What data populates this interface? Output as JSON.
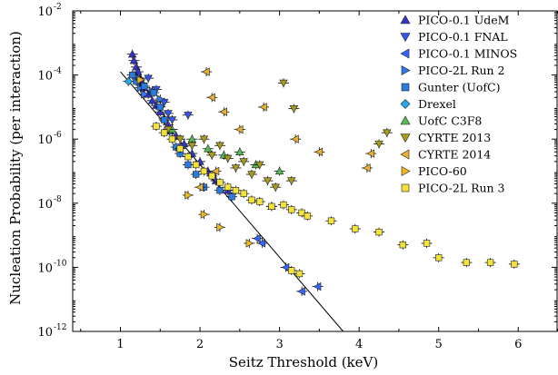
{
  "chart_data": {
    "type": "scatter",
    "title": "",
    "xlabel": "Seitz Threshold (keV)",
    "ylabel": "Nucleation Probability (per interaction)",
    "xlim": [
      0.4,
      6.5
    ],
    "ylim_log10": [
      -12,
      -2
    ],
    "y_scale": "log",
    "x_ticks": [
      "1",
      "2",
      "3",
      "4",
      "5",
      "6"
    ],
    "y_ticks": [
      "10",
      "10",
      "10",
      "10",
      "10",
      "10"
    ],
    "y_tick_exponents": [
      "-12",
      "-10",
      "-8",
      "-6",
      "-4",
      "-2"
    ],
    "legend_position": "top-right",
    "fit_line": {
      "color": "#000000",
      "points": [
        [
          1.0,
          -3.9
        ],
        [
          3.8,
          -12.0
        ]
      ]
    },
    "series": [
      {
        "name": "PICO-0.1 UdeM",
        "marker": "triangle-up",
        "color": "#3333cc",
        "points": [
          [
            1.15,
            -3.35
          ],
          [
            1.17,
            -3.55
          ],
          [
            1.2,
            -3.75
          ],
          [
            1.22,
            -3.9
          ],
          [
            1.25,
            -4.1
          ],
          [
            1.27,
            -4.25
          ],
          [
            1.3,
            -4.4
          ],
          [
            1.35,
            -4.6
          ],
          [
            1.4,
            -4.8
          ],
          [
            1.45,
            -4.95
          ],
          [
            1.5,
            -5.15
          ],
          [
            1.55,
            -5.35
          ],
          [
            1.6,
            -5.55
          ],
          [
            1.7,
            -5.9
          ],
          [
            1.8,
            -6.15
          ],
          [
            1.9,
            -6.45
          ],
          [
            2.0,
            -6.7
          ],
          [
            2.1,
            -7.0
          ],
          [
            2.2,
            -7.3
          ],
          [
            2.35,
            -7.6
          ],
          [
            2.9,
            -8.1
          ]
        ]
      },
      {
        "name": "PICO-0.1 FNAL",
        "marker": "triangle-down",
        "color": "#3355ee",
        "points": [
          [
            1.35,
            -4.1
          ],
          [
            1.45,
            -4.45
          ],
          [
            1.55,
            -4.85
          ],
          [
            1.6,
            -5.2
          ],
          [
            1.65,
            -5.4
          ],
          [
            1.85,
            -5.25
          ]
        ]
      },
      {
        "name": "PICO-0.1 MINOS",
        "marker": "triangle-left",
        "color": "#3366ff",
        "points": [
          [
            2.72,
            -9.1
          ],
          [
            2.78,
            -9.25
          ],
          [
            3.08,
            -10.0
          ],
          [
            3.28,
            -10.75
          ],
          [
            3.48,
            -10.6
          ]
        ]
      },
      {
        "name": "PICO-2L Run 2",
        "marker": "triangle-right",
        "color": "#3377ee",
        "points": [
          [
            1.2,
            -4.05
          ],
          [
            1.25,
            -4.4
          ],
          [
            1.3,
            -4.6
          ],
          [
            1.4,
            -4.5
          ],
          [
            1.5,
            -4.75
          ]
        ]
      },
      {
        "name": "Gunter (UofC)",
        "marker": "square",
        "color": "#2a7be0",
        "points": [
          [
            1.15,
            -4.0
          ],
          [
            1.2,
            -4.2
          ],
          [
            1.3,
            -4.35
          ],
          [
            1.42,
            -4.55
          ],
          [
            1.5,
            -5.0
          ],
          [
            1.55,
            -5.4
          ],
          [
            1.62,
            -5.75
          ],
          [
            1.7,
            -6.25
          ],
          [
            1.75,
            -6.45
          ],
          [
            1.85,
            -6.8
          ],
          [
            1.95,
            -7.1
          ],
          [
            2.05,
            -7.5
          ],
          [
            2.25,
            -7.6
          ],
          [
            2.4,
            -7.8
          ]
        ]
      },
      {
        "name": "Drexel",
        "marker": "diamond",
        "color": "#22aaee",
        "points": [
          [
            1.1,
            -4.2
          ]
        ]
      },
      {
        "name": "UofC C3F8",
        "marker": "triangle-up",
        "color": "#55bb55",
        "points": [
          [
            1.65,
            -5.7
          ],
          [
            1.9,
            -6.0
          ],
          [
            2.1,
            -6.3
          ],
          [
            2.3,
            -6.5
          ],
          [
            2.5,
            -6.4
          ],
          [
            2.7,
            -6.8
          ],
          [
            3.0,
            -7.0
          ]
        ]
      },
      {
        "name": "CYRTE 2013",
        "marker": "triangle-down",
        "color": "#a89a1a",
        "points": [
          [
            1.6,
            -5.7
          ],
          [
            1.75,
            -6.0
          ],
          [
            1.9,
            -6.2
          ],
          [
            2.05,
            -6.0
          ],
          [
            2.15,
            -6.5
          ],
          [
            2.25,
            -6.2
          ],
          [
            2.35,
            -6.6
          ],
          [
            2.45,
            -6.9
          ],
          [
            2.55,
            -6.7
          ],
          [
            2.65,
            -7.1
          ],
          [
            2.75,
            -6.8
          ],
          [
            2.85,
            -7.3
          ],
          [
            2.95,
            -7.5
          ],
          [
            3.15,
            -7.3
          ],
          [
            3.05,
            -4.25
          ],
          [
            3.18,
            -5.05
          ],
          [
            4.25,
            -6.15
          ],
          [
            4.35,
            -5.8
          ]
        ]
      },
      {
        "name": "CYRTE 2014",
        "marker": "triangle-left",
        "color": "#e8b030",
        "points": [
          [
            2.08,
            -3.9
          ],
          [
            2.15,
            -4.7
          ],
          [
            2.3,
            -5.15
          ],
          [
            2.5,
            -5.7
          ],
          [
            2.8,
            -5.0
          ],
          [
            3.2,
            -6.0
          ],
          [
            3.5,
            -6.4
          ],
          [
            4.15,
            -6.45
          ],
          [
            4.1,
            -6.9
          ],
          [
            2.0,
            -7.5
          ],
          [
            2.2,
            -7.0
          ]
        ]
      },
      {
        "name": "PICO-60",
        "marker": "triangle-right",
        "color": "#f0b820",
        "points": [
          [
            1.25,
            -4.15
          ],
          [
            1.85,
            -7.75
          ],
          [
            2.05,
            -8.35
          ],
          [
            2.25,
            -8.75
          ],
          [
            2.62,
            -9.25
          ]
        ]
      },
      {
        "name": "PICO-2L Run 3",
        "marker": "square",
        "color": "#f2e23a",
        "points": [
          [
            1.45,
            -5.6
          ],
          [
            1.55,
            -5.8
          ],
          [
            1.65,
            -6.0
          ],
          [
            1.75,
            -6.3
          ],
          [
            1.85,
            -6.55
          ],
          [
            1.95,
            -6.8
          ],
          [
            2.05,
            -7.0
          ],
          [
            2.15,
            -7.15
          ],
          [
            2.25,
            -7.35
          ],
          [
            2.35,
            -7.5
          ],
          [
            2.45,
            -7.6
          ],
          [
            2.55,
            -7.7
          ],
          [
            2.65,
            -7.9
          ],
          [
            2.75,
            -7.95
          ],
          [
            2.9,
            -8.1
          ],
          [
            3.05,
            -8.05
          ],
          [
            3.15,
            -8.2
          ],
          [
            3.28,
            -8.3
          ],
          [
            3.35,
            -8.4
          ],
          [
            3.65,
            -8.55
          ],
          [
            3.95,
            -8.8
          ],
          [
            4.25,
            -8.9
          ],
          [
            4.55,
            -9.3
          ],
          [
            4.85,
            -9.25
          ],
          [
            5.0,
            -9.7
          ],
          [
            5.35,
            -9.85
          ],
          [
            5.65,
            -9.85
          ],
          [
            5.95,
            -9.9
          ],
          [
            3.15,
            -10.1
          ],
          [
            3.25,
            -10.2
          ]
        ]
      }
    ]
  }
}
